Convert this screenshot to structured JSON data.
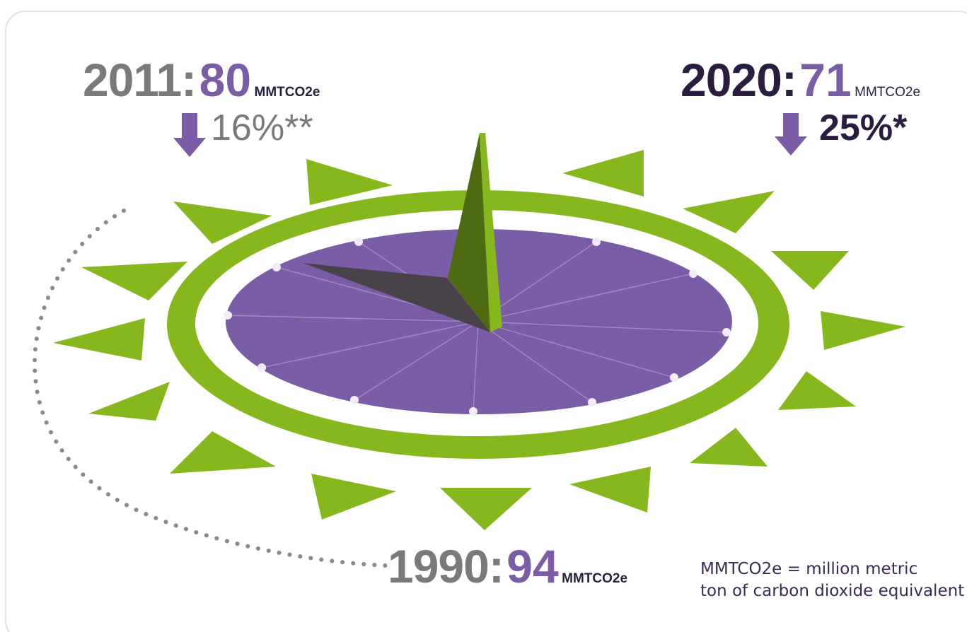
{
  "colors": {
    "purple": "#7b5ca6",
    "dark_purple": "#2a1d40",
    "gray": "#7a7a7a",
    "green": "#86b81d",
    "green_dark": "#4f6b12",
    "shadow": "#4a4249"
  },
  "milestones": [
    {
      "year": "2011:",
      "value": "80",
      "unit": "MMTCO2e",
      "change": "16%**",
      "arrow": "down-arrow-icon"
    },
    {
      "year": "2020:",
      "value": "71",
      "unit": "MMTCO2e",
      "change": "25%*",
      "arrow": "down-arrow-icon"
    },
    {
      "year": "1990:",
      "value": "94",
      "unit": "MMTCO2e"
    }
  ],
  "definition": {
    "line1": "MMTCO2e = million metric",
    "line2": "ton of carbon dioxide equivalent"
  }
}
